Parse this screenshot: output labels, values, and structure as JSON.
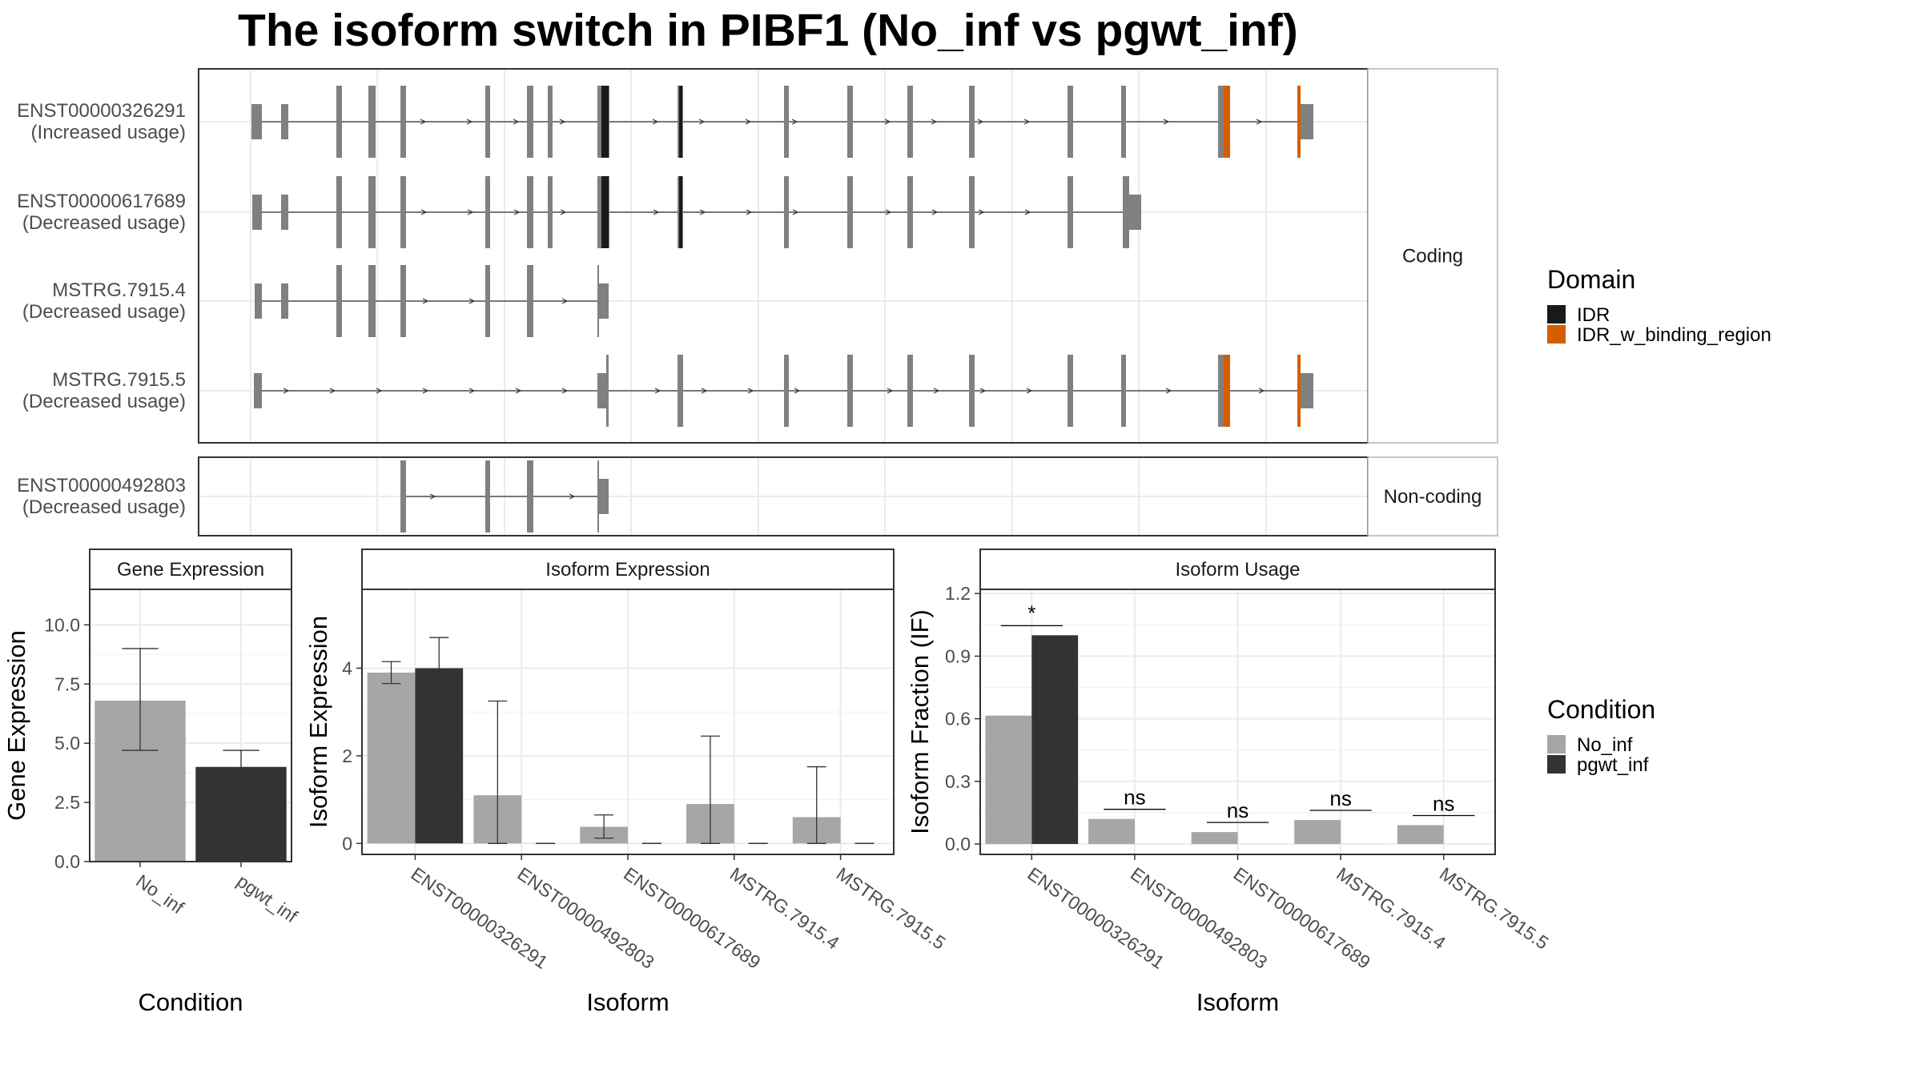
{
  "title": "The isoform switch in PIBF1 (No_inf vs pgwt_inf)",
  "colors": {
    "no_inf": "#a6a6a6",
    "pgwt_inf": "#333333",
    "exon": "#808080",
    "idr": "#1a1a1a",
    "idr_binding": "#d55e00",
    "grid": "#ebebeb",
    "panel_border": "#333333",
    "strip_border": "#b3b3b3"
  },
  "transcript_panel": {
    "coding_label": "Coding",
    "noncoding_label": "Non-coding",
    "transcripts": [
      {
        "id": "ENST00000326291",
        "usage": "(Increased usage)",
        "group": "coding"
      },
      {
        "id": "ENST00000617689",
        "usage": "(Decreased usage)",
        "group": "coding"
      },
      {
        "id": "MSTRG.7915.4",
        "usage": "(Decreased usage)",
        "group": "coding"
      },
      {
        "id": "MSTRG.7915.5",
        "usage": "(Decreased usage)",
        "group": "coding"
      },
      {
        "id": "ENST00000492803",
        "usage": "(Decreased usage)",
        "group": "noncoding"
      }
    ]
  },
  "domain_legend": {
    "title": "Domain",
    "items": [
      {
        "label": "IDR",
        "color": "#1a1a1a"
      },
      {
        "label": "IDR_w_binding_region",
        "color": "#d55e00"
      }
    ]
  },
  "condition_legend": {
    "title": "Condition",
    "items": [
      {
        "label": "No_inf",
        "color": "#a6a6a6"
      },
      {
        "label": "pgwt_inf",
        "color": "#333333"
      }
    ]
  },
  "chart_data": [
    {
      "type": "bar",
      "title": "Gene Expression",
      "xlabel": "Condition",
      "ylabel": "Gene Expression",
      "categories": [
        "No_inf",
        "pgwt_inf"
      ],
      "values": [
        6.8,
        4.0
      ],
      "error_low": [
        4.7,
        3.3
      ],
      "error_high": [
        9.0,
        4.7
      ],
      "ylim": [
        0,
        11.5
      ],
      "yticks": [
        "0.0",
        "2.5",
        "5.0",
        "7.5",
        "10.0"
      ]
    },
    {
      "type": "bar",
      "title": "Isoform Expression",
      "xlabel": "Isoform",
      "ylabel": "Isoform Expression",
      "categories": [
        "ENST00000326291",
        "ENST00000492803",
        "ENST00000617689",
        "MSTRG.7915.4",
        "MSTRG.7915.5"
      ],
      "series": [
        {
          "name": "No_inf",
          "values": [
            3.9,
            1.1,
            0.38,
            0.9,
            0.6
          ],
          "error_low": [
            3.65,
            0.0,
            0.12,
            0.0,
            0.0
          ],
          "error_high": [
            4.15,
            3.25,
            0.65,
            2.45,
            1.75
          ]
        },
        {
          "name": "pgwt_inf",
          "values": [
            4.0,
            0.0,
            0.0,
            0.0,
            0.0
          ],
          "error_low": [
            3.3,
            0.0,
            0.0,
            0.0,
            0.0
          ],
          "error_high": [
            4.7,
            0.0,
            0.0,
            0.0,
            0.0
          ]
        }
      ],
      "ylim": [
        -0.25,
        5.8
      ],
      "yticks": [
        "0",
        "2",
        "4"
      ]
    },
    {
      "type": "bar",
      "title": "Isoform Usage",
      "xlabel": "Isoform",
      "ylabel": "Isoform Fraction (IF)",
      "categories": [
        "ENST00000326291",
        "ENST00000492803",
        "ENST00000617689",
        "MSTRG.7915.4",
        "MSTRG.7915.5"
      ],
      "series": [
        {
          "name": "No_inf",
          "values": [
            0.615,
            0.12,
            0.057,
            0.115,
            0.09
          ]
        },
        {
          "name": "pgwt_inf",
          "values": [
            1.0,
            0.0,
            0.0,
            0.0,
            0.0
          ]
        }
      ],
      "significance": [
        "*",
        "ns",
        "ns",
        "ns",
        "ns"
      ],
      "ylim": [
        -0.05,
        1.22
      ],
      "yticks": [
        "0.0",
        "0.3",
        "0.6",
        "0.9",
        "1.2"
      ]
    }
  ]
}
